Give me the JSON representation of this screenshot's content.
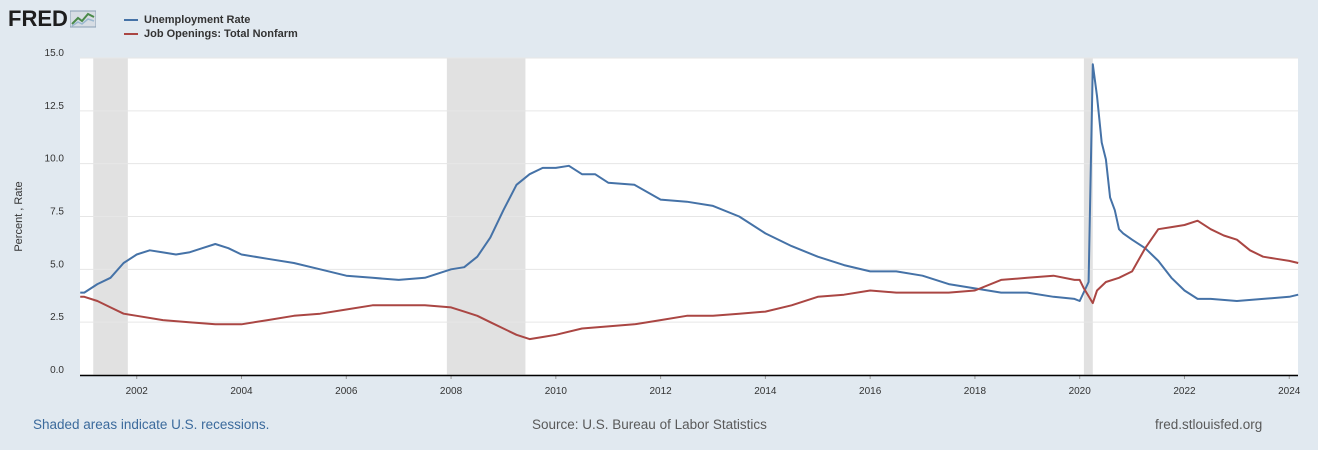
{
  "logo": {
    "text": "FRED"
  },
  "colors": {
    "unemployment": "#4572a7",
    "job_openings": "#aa4643",
    "recession": "#e1e1e1",
    "background": "#e1e9f0",
    "plot": "#ffffff"
  },
  "footer": {
    "recessions_note": "Shaded areas indicate U.S. recessions.",
    "source": "Source: U.S. Bureau of Labor Statistics",
    "site": "fred.stlouisfed.org"
  },
  "chart_data": {
    "type": "line",
    "title": "",
    "xlabel": "",
    "ylabel": "Percent , Rate",
    "xlim": [
      2000.917,
      2024.167
    ],
    "ylim": [
      0,
      15
    ],
    "yticks": [
      "0.0",
      "2.5",
      "5.0",
      "7.5",
      "10.0",
      "12.5",
      "15.0"
    ],
    "xticks": [
      "2002",
      "2004",
      "2006",
      "2008",
      "2010",
      "2012",
      "2014",
      "2016",
      "2018",
      "2020",
      "2022",
      "2024"
    ],
    "recessions": [
      [
        2001.17,
        2001.83
      ],
      [
        2007.92,
        2009.42
      ],
      [
        2020.08,
        2020.25
      ]
    ],
    "series": [
      {
        "name": "Unemployment Rate",
        "color": "#4572a7",
        "x": [
          2000.92,
          2001.0,
          2001.25,
          2001.5,
          2001.75,
          2002.0,
          2002.25,
          2002.5,
          2002.75,
          2003.0,
          2003.25,
          2003.5,
          2003.75,
          2004.0,
          2004.5,
          2005.0,
          2005.5,
          2006.0,
          2006.5,
          2007.0,
          2007.5,
          2008.0,
          2008.25,
          2008.5,
          2008.75,
          2009.0,
          2009.25,
          2009.5,
          2009.75,
          2010.0,
          2010.25,
          2010.5,
          2010.75,
          2011.0,
          2011.5,
          2012.0,
          2012.5,
          2013.0,
          2013.5,
          2014.0,
          2014.5,
          2015.0,
          2015.5,
          2016.0,
          2016.5,
          2017.0,
          2017.5,
          2018.0,
          2018.5,
          2019.0,
          2019.5,
          2019.9,
          2020.0,
          2020.17,
          2020.25,
          2020.33,
          2020.42,
          2020.5,
          2020.58,
          2020.67,
          2020.75,
          2020.83,
          2021.0,
          2021.25,
          2021.5,
          2021.75,
          2022.0,
          2022.25,
          2022.5,
          2023.0,
          2023.5,
          2024.0,
          2024.17
        ],
        "values": [
          3.9,
          3.9,
          4.3,
          4.6,
          5.3,
          5.7,
          5.9,
          5.8,
          5.7,
          5.8,
          6.0,
          6.2,
          6.0,
          5.7,
          5.5,
          5.3,
          5.0,
          4.7,
          4.6,
          4.5,
          4.6,
          5.0,
          5.1,
          5.6,
          6.5,
          7.8,
          9.0,
          9.5,
          9.8,
          9.8,
          9.9,
          9.5,
          9.5,
          9.1,
          9.0,
          8.3,
          8.2,
          8.0,
          7.5,
          6.7,
          6.1,
          5.6,
          5.2,
          4.9,
          4.9,
          4.7,
          4.3,
          4.1,
          3.9,
          3.9,
          3.7,
          3.6,
          3.5,
          4.4,
          14.7,
          13.2,
          11.0,
          10.2,
          8.4,
          7.8,
          6.9,
          6.7,
          6.4,
          6.0,
          5.4,
          4.6,
          4.0,
          3.6,
          3.6,
          3.5,
          3.6,
          3.7,
          3.8
        ]
      },
      {
        "name": "Job Openings: Total Nonfarm",
        "color": "#aa4643",
        "x": [
          2000.92,
          2001.0,
          2001.25,
          2001.5,
          2001.75,
          2002.0,
          2002.5,
          2003.0,
          2003.5,
          2004.0,
          2004.5,
          2005.0,
          2005.5,
          2006.0,
          2006.5,
          2007.0,
          2007.5,
          2008.0,
          2008.25,
          2008.5,
          2008.75,
          2009.0,
          2009.25,
          2009.5,
          2009.75,
          2010.0,
          2010.5,
          2011.0,
          2011.5,
          2012.0,
          2012.5,
          2013.0,
          2013.5,
          2014.0,
          2014.5,
          2015.0,
          2015.5,
          2016.0,
          2016.5,
          2017.0,
          2017.5,
          2018.0,
          2018.5,
          2019.0,
          2019.5,
          2019.9,
          2020.0,
          2020.08,
          2020.25,
          2020.33,
          2020.5,
          2020.75,
          2021.0,
          2021.25,
          2021.5,
          2021.75,
          2022.0,
          2022.25,
          2022.5,
          2022.75,
          2023.0,
          2023.25,
          2023.5,
          2023.75,
          2024.0,
          2024.17
        ],
        "values": [
          3.7,
          3.7,
          3.5,
          3.2,
          2.9,
          2.8,
          2.6,
          2.5,
          2.4,
          2.4,
          2.6,
          2.8,
          2.9,
          3.1,
          3.3,
          3.3,
          3.3,
          3.2,
          3.0,
          2.8,
          2.5,
          2.2,
          1.9,
          1.7,
          1.8,
          1.9,
          2.2,
          2.3,
          2.4,
          2.6,
          2.8,
          2.8,
          2.9,
          3.0,
          3.3,
          3.7,
          3.8,
          4.0,
          3.9,
          3.9,
          3.9,
          4.0,
          4.5,
          4.6,
          4.7,
          4.5,
          4.5,
          4.1,
          3.4,
          4.0,
          4.4,
          4.6,
          4.9,
          6.0,
          6.9,
          7.0,
          7.1,
          7.3,
          6.9,
          6.6,
          6.4,
          5.9,
          5.6,
          5.5,
          5.4,
          5.3
        ]
      }
    ]
  }
}
